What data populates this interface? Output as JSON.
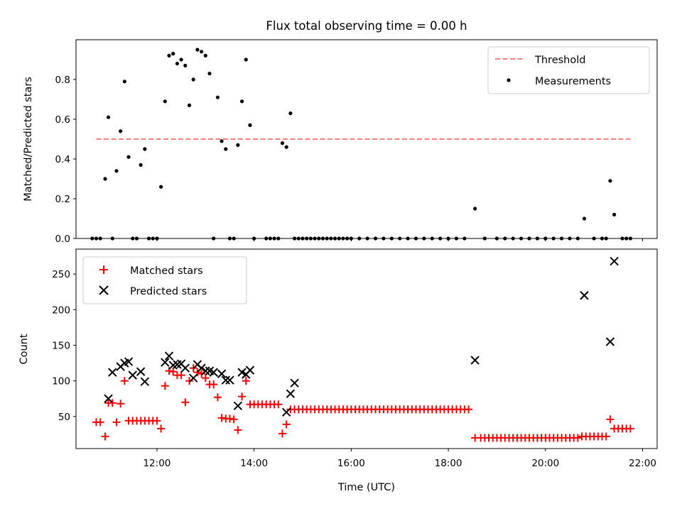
{
  "chart_data": {
    "title": "Flux total observing time = 0.00 h",
    "xlabel": "Time (UTC)",
    "xticks": [
      "12:00",
      "14:00",
      "16:00",
      "18:00",
      "20:00",
      "22:00"
    ],
    "xlim": [
      "10:20",
      "22:18"
    ],
    "panels": [
      {
        "type": "scatter",
        "ylabel": "Matched/Predicted stars",
        "ylim": [
          0,
          1.0
        ],
        "yticks": [
          "0.0",
          "0.2",
          "0.4",
          "0.6",
          "0.8"
        ],
        "series": [
          {
            "name": "Threshold",
            "style": "dashed-line",
            "color": "#ff7f7f",
            "x": [
              "10:45",
              "21:45"
            ],
            "y": [
              0.5,
              0.5
            ]
          },
          {
            "name": "Measurements",
            "style": "dot",
            "color": "#000000",
            "x": [
              "10:40",
              "10:45",
              "10:50",
              "10:56",
              "11:00",
              "11:05",
              "11:10",
              "11:15",
              "11:20",
              "11:25",
              "11:30",
              "11:35",
              "11:40",
              "11:45",
              "11:50",
              "11:55",
              "12:00",
              "12:05",
              "12:10",
              "12:15",
              "12:20",
              "12:25",
              "12:30",
              "12:35",
              "12:40",
              "12:45",
              "12:50",
              "12:55",
              "13:00",
              "13:05",
              "13:10",
              "13:15",
              "13:20",
              "13:25",
              "13:30",
              "13:35",
              "13:40",
              "13:45",
              "13:50",
              "13:55",
              "14:00",
              "14:15",
              "14:20",
              "14:25",
              "14:30",
              "14:35",
              "14:40",
              "14:45",
              "14:50",
              "14:55",
              "15:00",
              "15:05",
              "15:10",
              "15:15",
              "15:20",
              "15:25",
              "15:30",
              "15:35",
              "15:40",
              "15:45",
              "15:50",
              "15:55",
              "16:00",
              "16:10",
              "16:20",
              "16:30",
              "16:40",
              "16:50",
              "17:00",
              "17:10",
              "17:20",
              "17:30",
              "17:40",
              "17:50",
              "18:00",
              "18:10",
              "18:20",
              "18:33",
              "18:45",
              "19:00",
              "19:10",
              "19:20",
              "19:30",
              "19:40",
              "19:50",
              "20:00",
              "20:10",
              "20:20",
              "20:30",
              "20:40",
              "20:48",
              "21:00",
              "21:10",
              "21:15",
              "21:20",
              "21:25",
              "21:35",
              "21:40",
              "21:45"
            ],
            "y": [
              0,
              0,
              0,
              0.3,
              0.61,
              0,
              0.34,
              0.54,
              0.79,
              0.41,
              0,
              0,
              0.37,
              0.45,
              0,
              0,
              0,
              0.26,
              0.69,
              0.92,
              0.93,
              0.88,
              0.9,
              0.87,
              0.67,
              0.8,
              0.95,
              0.94,
              0.92,
              0.83,
              0,
              0.71,
              0.49,
              0.45,
              0,
              0,
              0.47,
              0.69,
              0.9,
              0.57,
              0,
              0,
              0,
              0,
              0,
              0.48,
              0.46,
              0.63,
              0,
              0,
              0,
              0,
              0,
              0,
              0,
              0,
              0,
              0,
              0,
              0,
              0,
              0,
              0,
              0,
              0,
              0,
              0,
              0,
              0,
              0,
              0,
              0,
              0,
              0,
              0,
              0,
              0,
              0.15,
              0,
              0,
              0,
              0,
              0,
              0,
              0,
              0,
              0,
              0,
              0,
              0,
              0.1,
              0,
              0,
              0,
              0.29,
              0.12,
              0,
              0,
              0
            ]
          }
        ]
      },
      {
        "type": "scatter",
        "ylabel": "Count",
        "ylim": [
          5,
          285
        ],
        "yticks": [
          "50",
          "100",
          "150",
          "200",
          "250"
        ],
        "series": [
          {
            "name": "Matched stars",
            "marker": "+",
            "color": "#ff0000",
            "x": [
              "10:45",
              "10:50",
              "10:56",
              "11:00",
              "11:05",
              "11:10",
              "11:15",
              "11:20",
              "11:25",
              "11:30",
              "11:35",
              "11:40",
              "11:45",
              "11:50",
              "11:55",
              "12:00",
              "12:05",
              "12:10",
              "12:15",
              "12:20",
              "12:25",
              "12:30",
              "12:35",
              "12:40",
              "12:45",
              "12:50",
              "12:55",
              "13:00",
              "13:05",
              "13:10",
              "13:15",
              "13:20",
              "13:25",
              "13:30",
              "13:35",
              "13:40",
              "13:45",
              "13:50",
              "13:55",
              "14:00",
              "14:05",
              "14:10",
              "14:15",
              "14:20",
              "14:25",
              "14:30",
              "14:35",
              "14:40",
              "14:45",
              "14:50",
              "14:55",
              "15:00",
              "15:05",
              "15:10",
              "15:15",
              "15:20",
              "15:25",
              "15:30",
              "15:35",
              "15:40",
              "15:45",
              "15:50",
              "15:55",
              "16:00",
              "16:05",
              "16:10",
              "16:15",
              "16:20",
              "16:25",
              "16:30",
              "16:35",
              "16:40",
              "16:45",
              "16:50",
              "16:55",
              "17:00",
              "17:05",
              "17:10",
              "17:15",
              "17:20",
              "17:25",
              "17:30",
              "17:35",
              "17:40",
              "17:45",
              "17:50",
              "17:55",
              "18:00",
              "18:05",
              "18:10",
              "18:15",
              "18:20",
              "18:25",
              "18:33",
              "18:40",
              "18:45",
              "18:50",
              "18:55",
              "19:00",
              "19:05",
              "19:10",
              "19:15",
              "19:20",
              "19:25",
              "19:30",
              "19:35",
              "19:40",
              "19:45",
              "19:50",
              "19:55",
              "20:00",
              "20:05",
              "20:10",
              "20:15",
              "20:20",
              "20:25",
              "20:30",
              "20:35",
              "20:40",
              "20:45",
              "20:50",
              "20:55",
              "21:00",
              "21:05",
              "21:10",
              "21:15",
              "21:20",
              "21:25",
              "21:30",
              "21:35",
              "21:40",
              "21:45"
            ],
            "y": [
              42,
              42,
              22,
              69,
              69,
              42,
              68,
              100,
              44,
              44,
              44,
              44,
              44,
              44,
              44,
              44,
              33,
              93,
              114,
              113,
              108,
              108,
              70,
              100,
              118,
              112,
              110,
              104,
              95,
              95,
              77,
              48,
              47,
              47,
              46,
              31,
              78,
              100,
              67,
              67,
              67,
              67,
              67,
              67,
              67,
              67,
              26,
              39,
              60,
              60,
              60,
              60,
              60,
              60,
              60,
              60,
              60,
              60,
              60,
              60,
              60,
              60,
              60,
              60,
              60,
              60,
              60,
              60,
              60,
              60,
              60,
              60,
              60,
              60,
              60,
              60,
              60,
              60,
              60,
              60,
              60,
              60,
              60,
              60,
              60,
              60,
              60,
              60,
              60,
              60,
              60,
              60,
              60,
              20,
              20,
              20,
              20,
              20,
              20,
              20,
              20,
              20,
              20,
              20,
              20,
              20,
              20,
              20,
              20,
              20,
              20,
              20,
              20,
              20,
              20,
              20,
              20,
              20,
              20,
              22,
              22,
              22,
              22,
              22,
              22,
              22,
              46,
              33,
              33,
              33,
              33,
              33
            ]
          },
          {
            "name": "Predicted stars",
            "marker": "x",
            "color": "#000000",
            "x": [
              "11:00",
              "11:05",
              "11:15",
              "11:20",
              "11:25",
              "11:30",
              "11:40",
              "11:45",
              "12:10",
              "12:15",
              "12:20",
              "12:25",
              "12:30",
              "12:35",
              "12:45",
              "12:50",
              "12:55",
              "13:00",
              "13:05",
              "13:10",
              "13:20",
              "13:25",
              "13:30",
              "13:40",
              "13:45",
              "13:50",
              "13:55",
              "14:40",
              "14:45",
              "14:50",
              "18:33",
              "20:48",
              "21:20",
              "21:25"
            ],
            "y": [
              75,
              112,
              120,
              125,
              127,
              108,
              113,
              99,
              126,
              135,
              122,
              123,
              124,
              118,
              104,
              123,
              118,
              114,
              114,
              112,
              110,
              101,
              101,
              65,
              112,
              109,
              115,
              56,
              82,
              97,
              129,
              220,
              155,
              268
            ]
          }
        ]
      }
    ]
  }
}
